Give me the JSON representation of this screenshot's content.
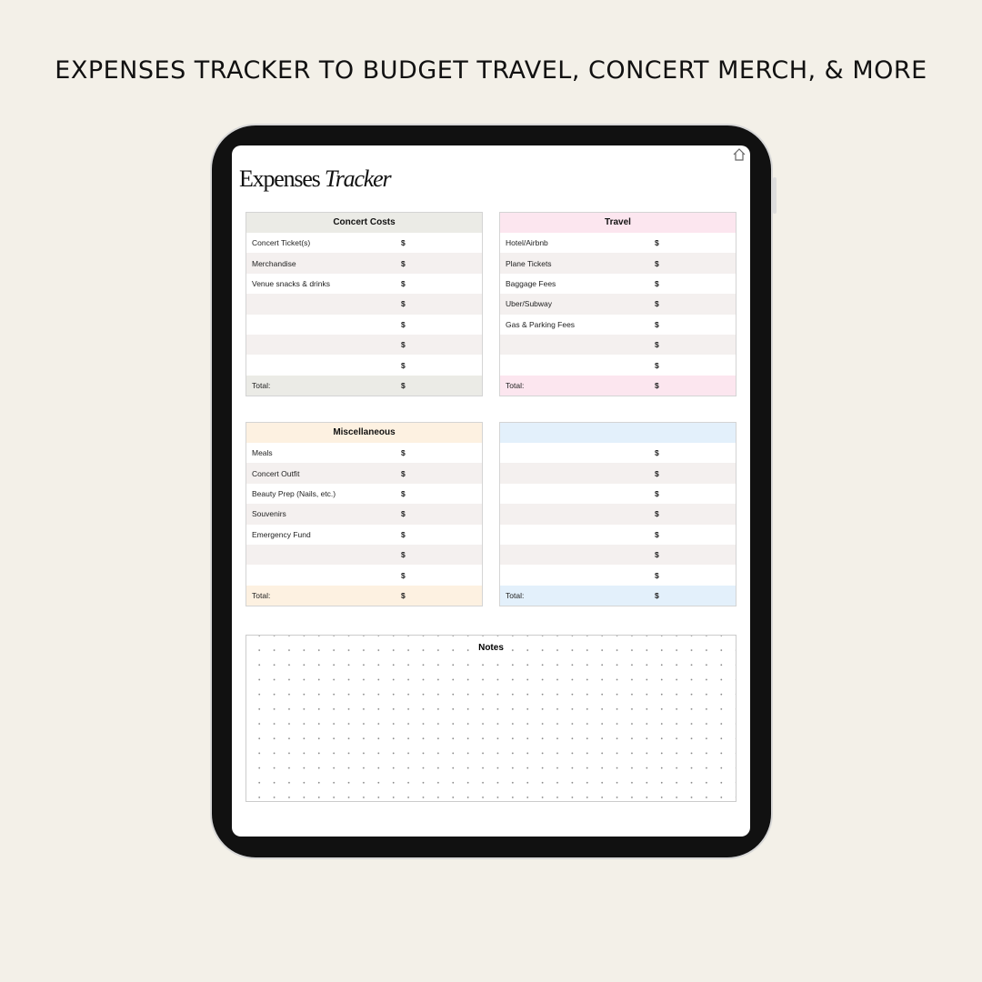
{
  "headline": "EXPENSES TRACKER TO BUDGET TRAVEL, CONCERT MERCH, & MORE",
  "page": {
    "title_regular": "Expenses",
    "title_italic": "Tracker",
    "home_icon": "home-icon"
  },
  "currency": "$",
  "tables": [
    {
      "title": "Concert Costs",
      "color": "#ebebe6",
      "items": [
        "Concert Ticket(s)",
        "Merchandise",
        "Venue snacks & drinks",
        "",
        "",
        "",
        ""
      ],
      "total_label": "Total:"
    },
    {
      "title": "Travel",
      "color": "#fce6ef",
      "items": [
        "Hotel/Airbnb",
        "Plane Tickets",
        "Baggage Fees",
        "Uber/Subway",
        "Gas & Parking Fees",
        "",
        ""
      ],
      "total_label": "Total:"
    },
    {
      "title": "Miscellaneous",
      "color": "#fdf1e1",
      "items": [
        "Meals",
        "Concert Outfit",
        "Beauty Prep (Nails, etc.)",
        "Souvenirs",
        "Emergency Fund",
        "",
        ""
      ],
      "total_label": "Total:"
    },
    {
      "title": "",
      "color": "#e3f0fb",
      "items": [
        "",
        "",
        "",
        "",
        "",
        "",
        ""
      ],
      "total_label": "Total:"
    }
  ],
  "notes": {
    "title": "Notes"
  }
}
